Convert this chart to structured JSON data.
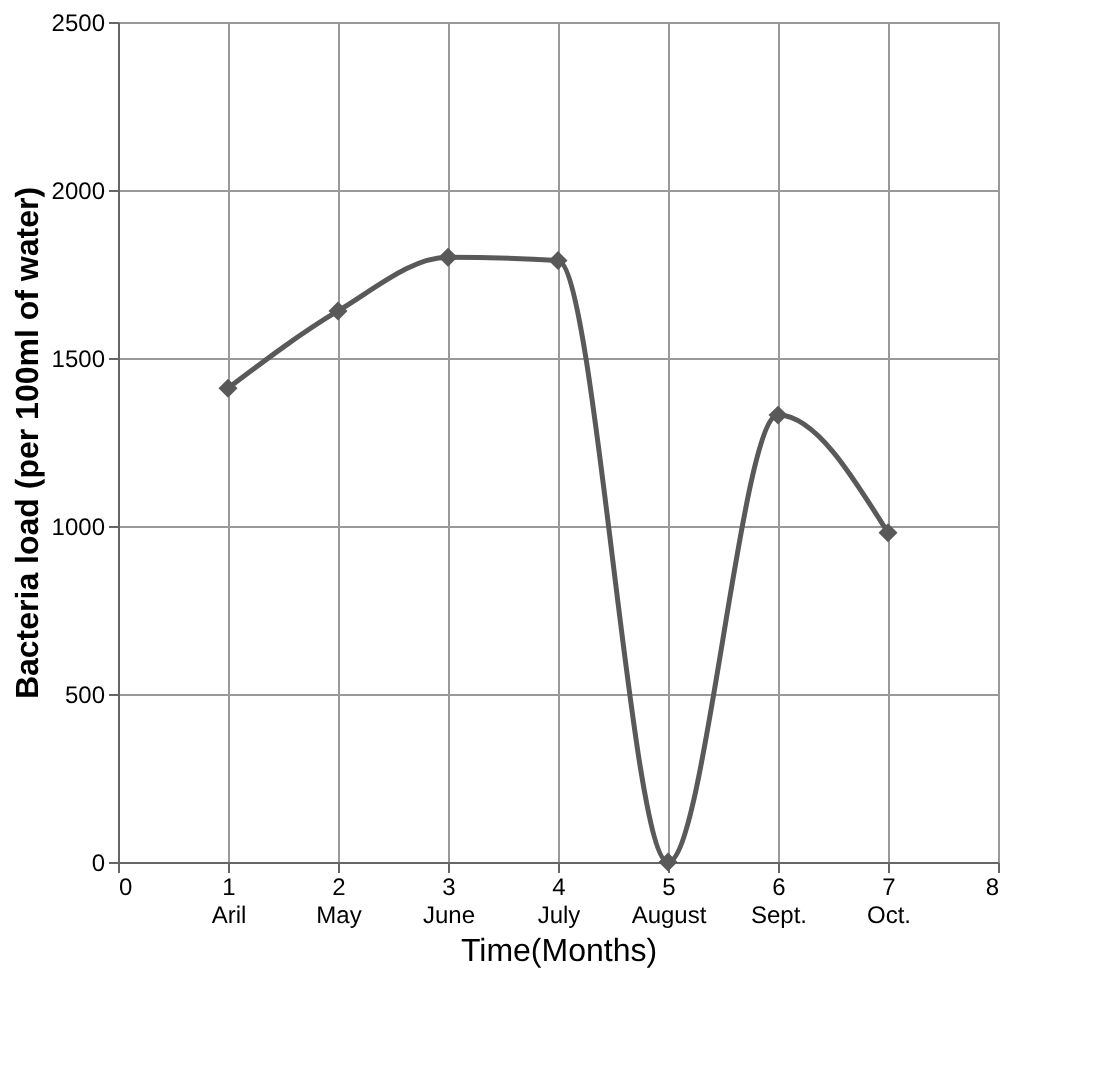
{
  "chart_data": {
    "type": "line",
    "xlabel": "Time(Months)",
    "ylabel": "Bacteria load (per 100ml of water)",
    "x": [
      1,
      2,
      3,
      4,
      5,
      6,
      7
    ],
    "series": [
      {
        "color": "#595959",
        "values": [
          1410,
          1640,
          1800,
          1790,
          0,
          1330,
          980
        ]
      }
    ],
    "xlim": [
      0,
      8
    ],
    "xticks": [
      0,
      {
        "value": 1,
        "label": "1\nAril"
      },
      {
        "value": 2,
        "label": "2\nMay"
      },
      {
        "value": 3,
        "label": "3\nJune"
      },
      {
        "value": 4,
        "label": "4\nJuly"
      },
      {
        "value": 5,
        "label": "5\nAugust"
      },
      {
        "value": 6,
        "label": "6\nSept."
      },
      {
        "value": 7,
        "label": "7\nOct."
      },
      8
    ],
    "ylim": [
      0,
      2500
    ],
    "yticks": [
      0,
      500,
      1000,
      1500,
      2000,
      2500
    ],
    "grid": true,
    "marker": "diamond",
    "line_style": "solid"
  }
}
